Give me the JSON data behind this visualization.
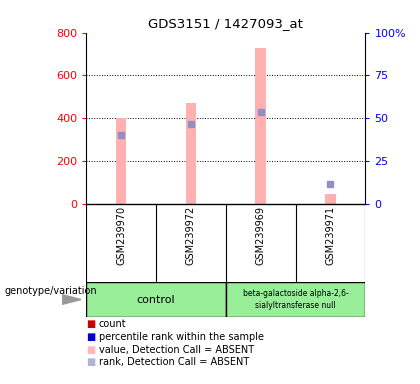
{
  "title": "GDS3151 / 1427093_at",
  "samples": [
    "GSM239970",
    "GSM239972",
    "GSM239969",
    "GSM239971"
  ],
  "pink_bar_values": [
    400,
    470,
    730,
    45
  ],
  "blue_square_values": [
    320,
    370,
    430,
    90
  ],
  "ylim_left": [
    0,
    800
  ],
  "ylim_right": [
    0,
    100
  ],
  "yticks_left": [
    0,
    200,
    400,
    600,
    800
  ],
  "yticks_right": [
    0,
    25,
    50,
    75,
    100
  ],
  "ytick_labels_right": [
    "0",
    "25",
    "50",
    "75",
    "100%"
  ],
  "grid_values": [
    200,
    400,
    600
  ],
  "legend_items": [
    {
      "color": "#cc0000",
      "label": "count"
    },
    {
      "color": "#0000cc",
      "label": "percentile rank within the sample"
    },
    {
      "color": "#ffb6c1",
      "label": "value, Detection Call = ABSENT"
    },
    {
      "color": "#b0b0d8",
      "label": "rank, Detection Call = ABSENT"
    }
  ],
  "bar_width": 0.15,
  "pink_color": "#ffb0b0",
  "blue_color": "#9090c8",
  "group_header": "genotype/variation",
  "background_color": "#ffffff",
  "plot_bg": "#ffffff",
  "gray_bg": "#cccccc",
  "green_bg": "#99ee99"
}
